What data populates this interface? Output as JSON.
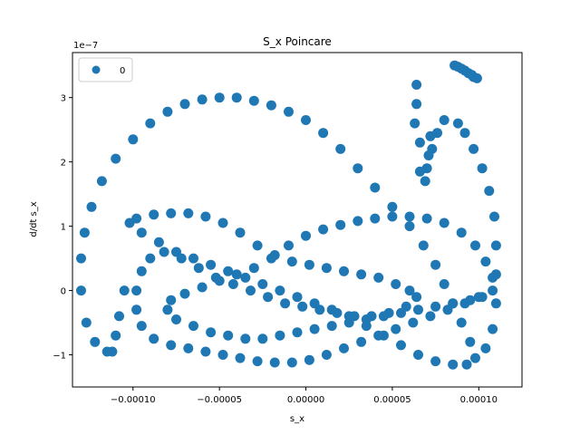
{
  "chart_data": {
    "type": "scatter",
    "title": "S_x Poincare",
    "xlabel": "s_x",
    "ylabel": "d/dt s_x",
    "y_offset_label": "1e−7",
    "xlim": [
      -0.000135,
      0.000125
    ],
    "ylim": [
      -1.5e-07,
      3.7e-07
    ],
    "x_ticks": [
      {
        "value": -0.0001,
        "label": "−0.00010"
      },
      {
        "value": -5e-05,
        "label": "−0.00005"
      },
      {
        "value": 0.0,
        "label": "0.00000"
      },
      {
        "value": 5e-05,
        "label": "0.00005"
      },
      {
        "value": 0.0001,
        "label": "0.00010"
      }
    ],
    "y_ticks": [
      {
        "value": -1e-07,
        "label": "−1"
      },
      {
        "value": 0,
        "label": "0"
      },
      {
        "value": 1e-07,
        "label": "1"
      },
      {
        "value": 2e-07,
        "label": "2"
      },
      {
        "value": 3e-07,
        "label": "3"
      }
    ],
    "grid": false,
    "legend": {
      "position": "top-left",
      "entries": [
        "0"
      ]
    },
    "series": [
      {
        "name": "0",
        "color": "#1f77b4",
        "points": [
          [
            -0.000115,
            -9.5e-08
          ],
          [
            -0.000122,
            -8e-08
          ],
          [
            -0.000127,
            -5e-08
          ],
          [
            -0.00013,
            0.0
          ],
          [
            -0.00013,
            5e-08
          ],
          [
            -0.000128,
            9e-08
          ],
          [
            -0.000124,
            1.3e-07
          ],
          [
            -0.000118,
            1.7e-07
          ],
          [
            -0.00011,
            2.05e-07
          ],
          [
            -0.0001,
            2.35e-07
          ],
          [
            -9e-05,
            2.6e-07
          ],
          [
            -8e-05,
            2.78e-07
          ],
          [
            -7e-05,
            2.9e-07
          ],
          [
            -6e-05,
            2.97e-07
          ],
          [
            -5e-05,
            3e-07
          ],
          [
            -4e-05,
            3e-07
          ],
          [
            -3e-05,
            2.95e-07
          ],
          [
            -2e-05,
            2.88e-07
          ],
          [
            -1e-05,
            2.78e-07
          ],
          [
            0.0,
            2.65e-07
          ],
          [
            1e-05,
            2.45e-07
          ],
          [
            2e-05,
            2.2e-07
          ],
          [
            3e-05,
            1.9e-07
          ],
          [
            4e-05,
            1.6e-07
          ],
          [
            5e-05,
            1.3e-07
          ],
          [
            6e-05,
            1e-07
          ],
          [
            6.8e-05,
            7e-08
          ],
          [
            7.5e-05,
            4e-08
          ],
          [
            8e-05,
            1e-08
          ],
          [
            8.5e-05,
            -2e-08
          ],
          [
            9e-05,
            -5e-08
          ],
          [
            9.5e-05,
            -8e-08
          ],
          [
            9.8e-05,
            -1.05e-07
          ],
          [
            9.3e-05,
            -1.15e-07
          ],
          [
            8.5e-05,
            -1.15e-07
          ],
          [
            7.5e-05,
            -1.1e-07
          ],
          [
            6.5e-05,
            -1e-07
          ],
          [
            5.5e-05,
            -8.5e-08
          ],
          [
            4.5e-05,
            -7e-08
          ],
          [
            3.5e-05,
            -5.5e-08
          ],
          [
            2.5e-05,
            -4e-08
          ],
          [
            1.5e-05,
            -3e-08
          ],
          [
            5e-06,
            -2e-08
          ],
          [
            -5e-06,
            -1e-08
          ],
          [
            -1.5e-05,
            0.0
          ],
          [
            -2.5e-05,
            1e-08
          ],
          [
            -3.5e-05,
            2e-08
          ],
          [
            -4.5e-05,
            3e-08
          ],
          [
            -5.5e-05,
            4e-08
          ],
          [
            -6.5e-05,
            5e-08
          ],
          [
            -7.5e-05,
            6e-08
          ],
          [
            -8.5e-05,
            7.5e-08
          ],
          [
            -9.5e-05,
            9e-08
          ],
          [
            -0.000102,
            1.05e-07
          ],
          [
            -9.8e-05,
            1.12e-07
          ],
          [
            -8.8e-05,
            1.18e-07
          ],
          [
            -7.8e-05,
            1.2e-07
          ],
          [
            -6.8e-05,
            1.2e-07
          ],
          [
            -5.8e-05,
            1.15e-07
          ],
          [
            -4.8e-05,
            1.05e-07
          ],
          [
            -3.8e-05,
            9e-08
          ],
          [
            -2.8e-05,
            7e-08
          ],
          [
            -1.8e-05,
            5.5e-08
          ],
          [
            -8e-06,
            4.5e-08
          ],
          [
            2e-06,
            4e-08
          ],
          [
            1.2e-05,
            3.5e-08
          ],
          [
            2.2e-05,
            3e-08
          ],
          [
            3.2e-05,
            2.5e-08
          ],
          [
            4.2e-05,
            2e-08
          ],
          [
            5.2e-05,
            1e-08
          ],
          [
            6e-05,
            0.0
          ],
          [
            6.4e-05,
            -1e-08
          ],
          [
            5.8e-05,
            -2.5e-08
          ],
          [
            4.8e-05,
            -3.5e-08
          ],
          [
            3.8e-05,
            -4e-08
          ],
          [
            2.8e-05,
            -4e-08
          ],
          [
            1.8e-05,
            -3.5e-08
          ],
          [
            8e-06,
            -3e-08
          ],
          [
            -2e-06,
            -2.5e-08
          ],
          [
            -1.2e-05,
            -2e-08
          ],
          [
            -2.2e-05,
            -1e-08
          ],
          [
            -3.2e-05,
            0.0
          ],
          [
            -4.2e-05,
            1e-08
          ],
          [
            -5.2e-05,
            2e-08
          ],
          [
            -6.2e-05,
            3.5e-08
          ],
          [
            -7.2e-05,
            5e-08
          ],
          [
            -8.2e-05,
            6e-08
          ],
          [
            -9e-05,
            5e-08
          ],
          [
            -9.5e-05,
            3e-08
          ],
          [
            -9.8e-05,
            0.0
          ],
          [
            -9.8e-05,
            -3e-08
          ],
          [
            -9.5e-05,
            -5.5e-08
          ],
          [
            -8.8e-05,
            -7.5e-08
          ],
          [
            -7.8e-05,
            -8.5e-08
          ],
          [
            -6.8e-05,
            -9e-08
          ],
          [
            -5.8e-05,
            -9.5e-08
          ],
          [
            -4.8e-05,
            -1e-07
          ],
          [
            -3.8e-05,
            -1.05e-07
          ],
          [
            -2.8e-05,
            -1.1e-07
          ],
          [
            -1.8e-05,
            -1.12e-07
          ],
          [
            -8e-06,
            -1.12e-07
          ],
          [
            2e-06,
            -1.08e-07
          ],
          [
            1.2e-05,
            -1e-07
          ],
          [
            2.2e-05,
            -9e-08
          ],
          [
            3.2e-05,
            -8e-08
          ],
          [
            4.2e-05,
            -7e-08
          ],
          [
            5.2e-05,
            -6e-08
          ],
          [
            6.2e-05,
            -5e-08
          ],
          [
            7.2e-05,
            -4e-08
          ],
          [
            8.2e-05,
            -3e-08
          ],
          [
            9.2e-05,
            -2e-08
          ],
          [
            0.000102,
            -1e-08
          ],
          [
            0.000108,
            0.0
          ],
          [
            0.000108,
            2e-08
          ],
          [
            0.000104,
            4.5e-08
          ],
          [
            9.8e-05,
            7e-08
          ],
          [
            9e-05,
            9e-08
          ],
          [
            8e-05,
            1.05e-07
          ],
          [
            7e-05,
            1.12e-07
          ],
          [
            6e-05,
            1.15e-07
          ],
          [
            5e-05,
            1.15e-07
          ],
          [
            4e-05,
            1.12e-07
          ],
          [
            3e-05,
            1.08e-07
          ],
          [
            2e-05,
            1.02e-07
          ],
          [
            1e-05,
            9.5e-08
          ],
          [
            0.0,
            8.5e-08
          ],
          [
            -1e-05,
            7e-08
          ],
          [
            -2e-05,
            5e-08
          ],
          [
            -3e-05,
            3.5e-08
          ],
          [
            -4e-05,
            2.5e-08
          ],
          [
            -5e-05,
            1.5e-08
          ],
          [
            -6e-05,
            5e-09
          ],
          [
            -7e-05,
            -5e-09
          ],
          [
            -7.8e-05,
            -1.5e-08
          ],
          [
            -8e-05,
            -3e-08
          ],
          [
            -7.5e-05,
            -4.5e-08
          ],
          [
            -6.5e-05,
            -5.5e-08
          ],
          [
            -5.5e-05,
            -6.5e-08
          ],
          [
            -4.5e-05,
            -7e-08
          ],
          [
            -3.5e-05,
            -7.5e-08
          ],
          [
            -2.5e-05,
            -7.5e-08
          ],
          [
            -1.5e-05,
            -7e-08
          ],
          [
            -5e-06,
            -6.5e-08
          ],
          [
            5e-06,
            -6e-08
          ],
          [
            1.5e-05,
            -5.5e-08
          ],
          [
            2.5e-05,
            -5e-08
          ],
          [
            3.5e-05,
            -4.5e-08
          ],
          [
            4.5e-05,
            -4e-08
          ],
          [
            5.5e-05,
            -3.5e-08
          ],
          [
            6.5e-05,
            -3e-08
          ],
          [
            7.5e-05,
            -2.5e-08
          ],
          [
            8.5e-05,
            -2e-08
          ],
          [
            9.5e-05,
            -1.5e-08
          ],
          [
            0.0001,
            -1e-08
          ],
          [
            -0.000105,
            0.0
          ],
          [
            -0.000108,
            -4e-08
          ],
          [
            -0.00011,
            -7e-08
          ],
          [
            -0.000112,
            -9.5e-08
          ],
          [
            8.8e-05,
            2.6e-07
          ],
          [
            9.2e-05,
            2.45e-07
          ],
          [
            9.7e-05,
            2.2e-07
          ],
          [
            0.000102,
            1.9e-07
          ],
          [
            0.000106,
            1.55e-07
          ],
          [
            0.000109,
            1.15e-07
          ],
          [
            0.00011,
            7e-08
          ],
          [
            0.00011,
            2.5e-08
          ],
          [
            0.00011,
            -2e-08
          ],
          [
            0.000108,
            -6e-08
          ],
          [
            0.000104,
            -9e-08
          ],
          [
            8e-05,
            2.65e-07
          ],
          [
            7.6e-05,
            2.45e-07
          ],
          [
            7.3e-05,
            2.2e-07
          ],
          [
            7e-05,
            1.9e-07
          ],
          [
            6.6e-05,
            2.3e-07
          ],
          [
            6.3e-05,
            2.6e-07
          ],
          [
            6.4e-05,
            2.9e-07
          ],
          [
            6.4e-05,
            3.2e-07
          ],
          [
            6.6e-05,
            1.85e-07
          ],
          [
            6.9e-05,
            1.7e-07
          ],
          [
            7.1e-05,
            2.1e-07
          ],
          [
            7.2e-05,
            2.4e-07
          ],
          [
            8.6e-05,
            3.5e-07
          ],
          [
            8.8e-05,
            3.48e-07
          ],
          [
            9e-05,
            3.45e-07
          ],
          [
            9.2e-05,
            3.42e-07
          ],
          [
            9.4e-05,
            3.38e-07
          ],
          [
            9.6e-05,
            3.35e-07
          ],
          [
            9.7e-05,
            3.32e-07
          ],
          [
            9.9e-05,
            3.3e-07
          ]
        ]
      }
    ]
  }
}
